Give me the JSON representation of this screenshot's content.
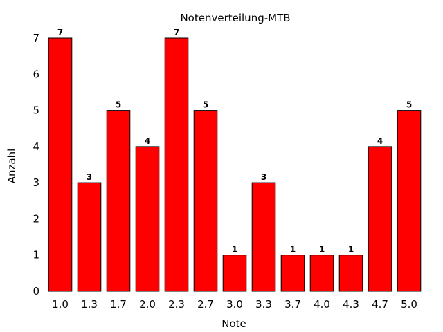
{
  "chart_data": {
    "type": "bar",
    "title": "Notenverteilung-MTB",
    "xlabel": "Note",
    "ylabel": "Anzahl",
    "categories": [
      "1.0",
      "1.3",
      "1.7",
      "2.0",
      "2.3",
      "2.7",
      "3.0",
      "3.3",
      "3.7",
      "4.0",
      "4.3",
      "4.7",
      "5.0"
    ],
    "values": [
      7,
      3,
      5,
      4,
      7,
      5,
      1,
      3,
      1,
      1,
      1,
      4,
      5
    ],
    "ylim": [
      0,
      7
    ],
    "yticks": [
      "0",
      "1",
      "2",
      "3",
      "4",
      "5",
      "6",
      "7"
    ],
    "grid": false,
    "bar_color": "#ff0000"
  }
}
